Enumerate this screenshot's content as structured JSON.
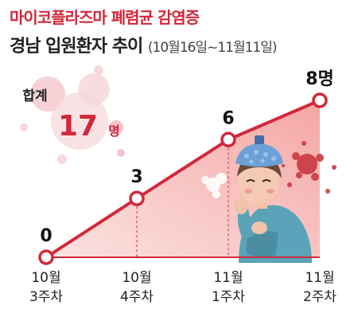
{
  "header": {
    "title": "마이코플라즈마 폐렴균 감염증",
    "subtitle": "경남 입원환자 추이",
    "period": "(10월16일~11월11일)"
  },
  "total": {
    "label": "합계",
    "value": "17",
    "unit": "명"
  },
  "chart_data": {
    "type": "line",
    "title": "경남 입원환자 추이",
    "categories": [
      [
        "10월",
        "3주차"
      ],
      [
        "10월",
        "4주차"
      ],
      [
        "11월",
        "1주차"
      ],
      [
        "11월",
        "2주차"
      ]
    ],
    "values": [
      0,
      3,
      6,
      8
    ],
    "data_labels": [
      "0",
      "3",
      "6",
      "8명"
    ],
    "ylim": [
      0,
      8
    ],
    "grid": false,
    "line_color": "#d2283a",
    "fill_color": "#f6b5b5"
  }
}
